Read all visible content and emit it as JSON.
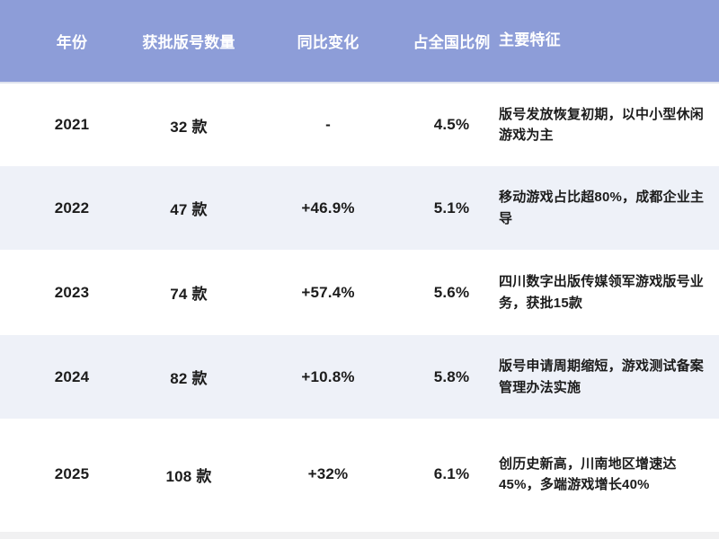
{
  "chart_data": {
    "type": "table",
    "title": "",
    "columns": [
      "年份",
      "获批版号数量",
      "同比变化",
      "占全国比例",
      "主要特征"
    ],
    "rows": [
      {
        "year": "2021",
        "count": "32 款",
        "yoy": "-",
        "share": "4.5%",
        "features": "版号发放恢复初期，以中小型休闲游戏为主"
      },
      {
        "year": "2022",
        "count": "47 款",
        "yoy": "+46.9%",
        "share": "5.1%",
        "features": "移动游戏占比超80%，成都企业主导"
      },
      {
        "year": "2023",
        "count": "74 款",
        "yoy": "+57.4%",
        "share": "5.6%",
        "features": "四川数字出版传媒领军游戏版号业务，获批15款"
      },
      {
        "year": "2024",
        "count": "82 款",
        "yoy": "+10.8%",
        "share": "5.8%",
        "features": "版号申请周期缩短，游戏测试备案管理办法实施"
      },
      {
        "year": "2025",
        "count": "108 款",
        "yoy": "+32%",
        "share": "6.1%",
        "features": "创历史新高，川南地区增速达45%，多端游戏增长40%"
      }
    ]
  },
  "colors": {
    "header_bg": "#8D9DD8",
    "header_text": "#FFFFFF",
    "row_bg": "#FFFFFF",
    "row_alt_bg": "#EEF1F8",
    "text": "#1C1C1C",
    "bottom_strip": "#F1F1F2"
  }
}
